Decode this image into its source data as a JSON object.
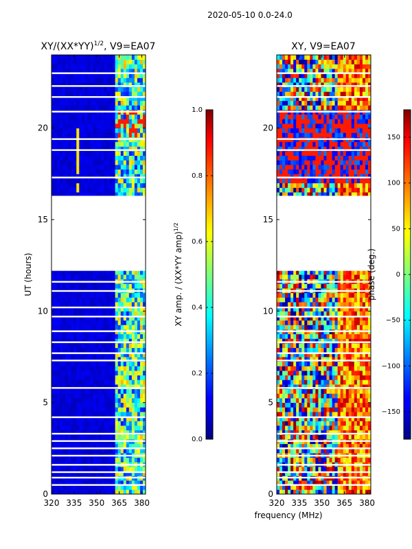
{
  "figure": {
    "suptitle": "2020-05-10 0.0-24.0",
    "xlabel": "frequency (MHz)"
  },
  "chart_data": [
    {
      "type": "heatmap",
      "title_main": "XY/(XX*YY)",
      "title_sup": "1/2",
      "title_tail": ", V9=EA07",
      "xlabel": "",
      "ylabel": "UT (hours)",
      "xlim": [
        320,
        382.5
      ],
      "ylim": [
        0,
        24
      ],
      "xticks": [
        320,
        335,
        350,
        365,
        380
      ],
      "yticks": [
        0,
        5,
        10,
        15,
        20
      ],
      "data_gaps_hours": [
        [
          12.2,
          16.3
        ]
      ],
      "colorbar": {
        "label_main": "XY amp. / (XX*YY amp)",
        "label_sup": "1/2",
        "range": [
          0.0,
          1.0
        ],
        "ticks": [
          "0.0",
          "0.2",
          "0.4",
          "0.6",
          "0.8",
          "1.0"
        ],
        "colormap": "jet"
      }
    },
    {
      "type": "heatmap",
      "title_main": "XY, V9=EA07",
      "xlabel": "",
      "ylabel": "",
      "xlim": [
        320,
        382.5
      ],
      "ylim": [
        0,
        24
      ],
      "xticks": [
        320,
        335,
        350,
        365,
        380
      ],
      "yticks": [
        0,
        5,
        10,
        15,
        20
      ],
      "data_gaps_hours": [
        [
          12.2,
          16.3
        ]
      ],
      "colorbar": {
        "label": "phase (deg.)",
        "range": [
          -180,
          180
        ],
        "ticks": [
          "-150",
          "-100",
          "-50",
          "0",
          "50",
          "100",
          "150"
        ],
        "colormap": "jet"
      }
    }
  ]
}
